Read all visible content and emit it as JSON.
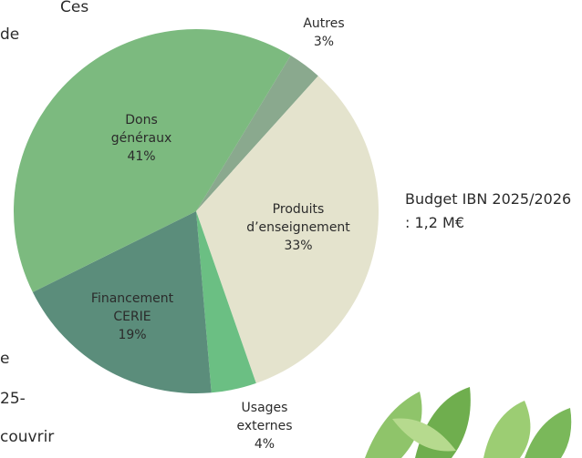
{
  "chart_data": {
    "type": "pie",
    "categories": [
      "Autres",
      "Produits d’enseignement",
      "Usages externes",
      "Financement CERIE",
      "Dons généraux"
    ],
    "values": [
      3,
      33,
      4,
      19,
      41
    ],
    "value_labels": [
      "3%",
      "33%",
      "4%",
      "19%",
      "41%"
    ],
    "colors": [
      "#8aa98e",
      "#e4e3cd",
      "#6bbf83",
      "#5b8d7b",
      "#7cba7f"
    ],
    "annotation": "Budget IBN 2025/2026 : 1,2 M€"
  },
  "text_fragments": [
    "Ces",
    "de",
    "e",
    "25-",
    "couvrir"
  ]
}
